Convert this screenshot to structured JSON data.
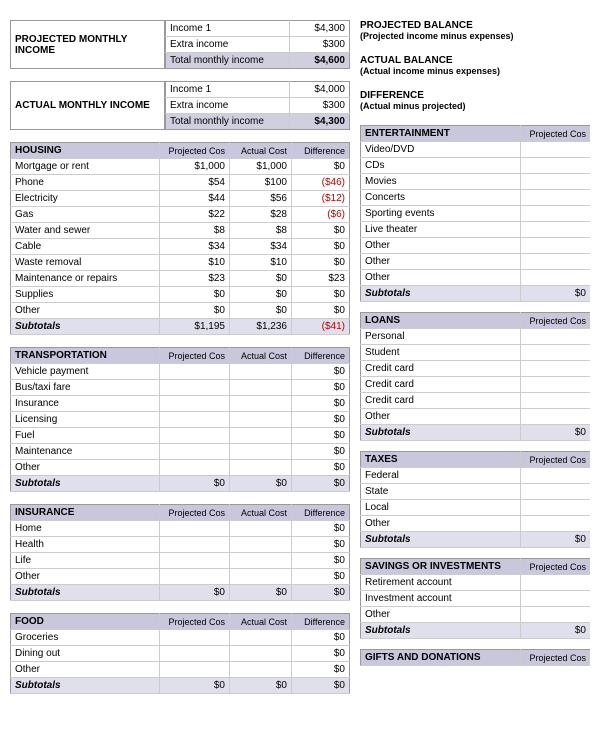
{
  "projected_income": {
    "label": "PROJECTED MONTHLY INCOME",
    "rows": [
      {
        "label": "Income 1",
        "value": "$4,300"
      },
      {
        "label": "Extra income",
        "value": "$300"
      }
    ],
    "total_label": "Total monthly income",
    "total_value": "$4,600"
  },
  "actual_income": {
    "label": "ACTUAL MONTHLY INCOME",
    "rows": [
      {
        "label": "Income 1",
        "value": "$4,000"
      },
      {
        "label": "Extra income",
        "value": "$300"
      }
    ],
    "total_label": "Total monthly income",
    "total_value": "$4,300"
  },
  "summary": [
    {
      "title": "PROJECTED BALANCE",
      "sub": "(Projected income minus expenses)"
    },
    {
      "title": "ACTUAL BALANCE",
      "sub": "(Actual income minus expenses)"
    },
    {
      "title": "DIFFERENCE",
      "sub": "(Actual minus projected)"
    }
  ],
  "col_headers": {
    "proj": "Projected Cos",
    "act": "Actual Cost",
    "diff": "Difference"
  },
  "subtotal_label": "Subtotals",
  "left_categories": [
    {
      "name": "HOUSING",
      "rows": [
        {
          "label": "Mortgage or rent",
          "proj": "$1,000",
          "act": "$1,000",
          "diff": "$0"
        },
        {
          "label": "Phone",
          "proj": "$54",
          "act": "$100",
          "diff": "($46)",
          "neg": true
        },
        {
          "label": "Electricity",
          "proj": "$44",
          "act": "$56",
          "diff": "($12)",
          "neg": true
        },
        {
          "label": "Gas",
          "proj": "$22",
          "act": "$28",
          "diff": "($6)",
          "neg": true
        },
        {
          "label": "Water and sewer",
          "proj": "$8",
          "act": "$8",
          "diff": "$0"
        },
        {
          "label": "Cable",
          "proj": "$34",
          "act": "$34",
          "diff": "$0"
        },
        {
          "label": "Waste removal",
          "proj": "$10",
          "act": "$10",
          "diff": "$0"
        },
        {
          "label": "Maintenance or repairs",
          "proj": "$23",
          "act": "$0",
          "diff": "$23"
        },
        {
          "label": "Supplies",
          "proj": "$0",
          "act": "$0",
          "diff": "$0"
        },
        {
          "label": "Other",
          "proj": "$0",
          "act": "$0",
          "diff": "$0"
        }
      ],
      "sub_proj": "$1,195",
      "sub_act": "$1,236",
      "sub_diff": "($41)",
      "sub_neg": true
    },
    {
      "name": "TRANSPORTATION",
      "rows": [
        {
          "label": "Vehicle payment",
          "proj": "",
          "act": "",
          "diff": "$0"
        },
        {
          "label": "Bus/taxi fare",
          "proj": "",
          "act": "",
          "diff": "$0"
        },
        {
          "label": "Insurance",
          "proj": "",
          "act": "",
          "diff": "$0"
        },
        {
          "label": "Licensing",
          "proj": "",
          "act": "",
          "diff": "$0"
        },
        {
          "label": "Fuel",
          "proj": "",
          "act": "",
          "diff": "$0"
        },
        {
          "label": "Maintenance",
          "proj": "",
          "act": "",
          "diff": "$0"
        },
        {
          "label": "Other",
          "proj": "",
          "act": "",
          "diff": "$0"
        }
      ],
      "sub_proj": "$0",
      "sub_act": "$0",
      "sub_diff": "$0"
    },
    {
      "name": "INSURANCE",
      "rows": [
        {
          "label": "Home",
          "proj": "",
          "act": "",
          "diff": "$0"
        },
        {
          "label": "Health",
          "proj": "",
          "act": "",
          "diff": "$0"
        },
        {
          "label": "Life",
          "proj": "",
          "act": "",
          "diff": "$0"
        },
        {
          "label": "Other",
          "proj": "",
          "act": "",
          "diff": "$0"
        }
      ],
      "sub_proj": "$0",
      "sub_act": "$0",
      "sub_diff": "$0"
    },
    {
      "name": "FOOD",
      "rows": [
        {
          "label": "Groceries",
          "proj": "",
          "act": "",
          "diff": "$0"
        },
        {
          "label": "Dining out",
          "proj": "",
          "act": "",
          "diff": "$0"
        },
        {
          "label": "Other",
          "proj": "",
          "act": "",
          "diff": "$0"
        }
      ],
      "sub_proj": "$0",
      "sub_act": "$0",
      "sub_diff": "$0"
    }
  ],
  "right_categories": [
    {
      "name": "ENTERTAINMENT",
      "rows": [
        "Video/DVD",
        "CDs",
        "Movies",
        "Concerts",
        "Sporting events",
        "Live theater",
        "Other",
        "Other",
        "Other"
      ],
      "sub_proj": "$0"
    },
    {
      "name": "LOANS",
      "rows": [
        "Personal",
        "Student",
        "Credit card",
        "Credit card",
        "Credit card",
        "Other"
      ],
      "sub_proj": "$0"
    },
    {
      "name": "TAXES",
      "rows": [
        "Federal",
        "State",
        "Local",
        "Other"
      ],
      "sub_proj": "$0"
    },
    {
      "name": "SAVINGS OR INVESTMENTS",
      "rows": [
        "Retirement account",
        "Investment account",
        "Other"
      ],
      "sub_proj": "$0"
    },
    {
      "name": "GIFTS AND DONATIONS",
      "rows": [],
      "sub_proj": ""
    }
  ]
}
